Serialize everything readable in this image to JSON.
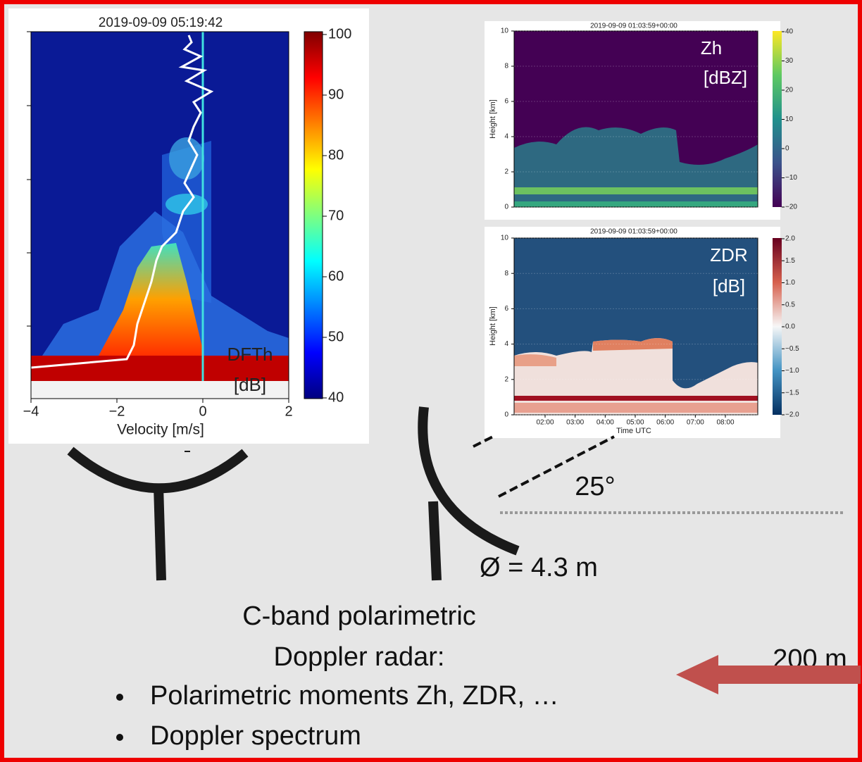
{
  "spectrum_plot": {
    "title": "2019-09-09 05:19:42",
    "x_label": "Velocity [m/s]",
    "x_ticks": [
      "−4",
      "−2",
      "0",
      "2"
    ],
    "colorbar_ticks": [
      "100",
      "90",
      "80",
      "70",
      "60",
      "50",
      "40"
    ],
    "variable_label": "DFTh",
    "unit_label": "[dB]"
  },
  "zh_plot": {
    "title": "2019-09-09 01:03:59+00:00",
    "y_label": "Height [km]",
    "y_ticks": [
      "10",
      "8",
      "6",
      "4",
      "2",
      "0"
    ],
    "colorbar_ticks": [
      "40",
      "30",
      "20",
      "10",
      "0",
      "−10",
      "−20"
    ],
    "variable_label": "Zh",
    "unit_label": "[dBZ]"
  },
  "zdr_plot": {
    "title": "2019-09-09 01:03:59+00:00",
    "y_label": "Height [km]",
    "y_ticks": [
      "10",
      "8",
      "6",
      "4",
      "2",
      "0"
    ],
    "x_ticks": [
      "02:00",
      "03:00",
      "04:00",
      "05:00",
      "06:00",
      "07:00",
      "08:00"
    ],
    "x_label": "Time UTC",
    "colorbar_ticks": [
      "2.0",
      "1.5",
      "1.0",
      "0.5",
      "0.0",
      "−0.5",
      "−1.0",
      "−1.5",
      "−2.0"
    ],
    "variable_label": "ZDR",
    "unit_label": "[dB]"
  },
  "annotations": {
    "angle": "25°",
    "diameter": "Ø = 4.3 m",
    "distance": "200 m"
  },
  "description": {
    "heading_lines": [
      "C-band polarimetric",
      "Doppler radar:"
    ],
    "bullets": [
      "Polarimetric moments Zh, ZDR, …",
      "Doppler spectrum"
    ]
  }
}
